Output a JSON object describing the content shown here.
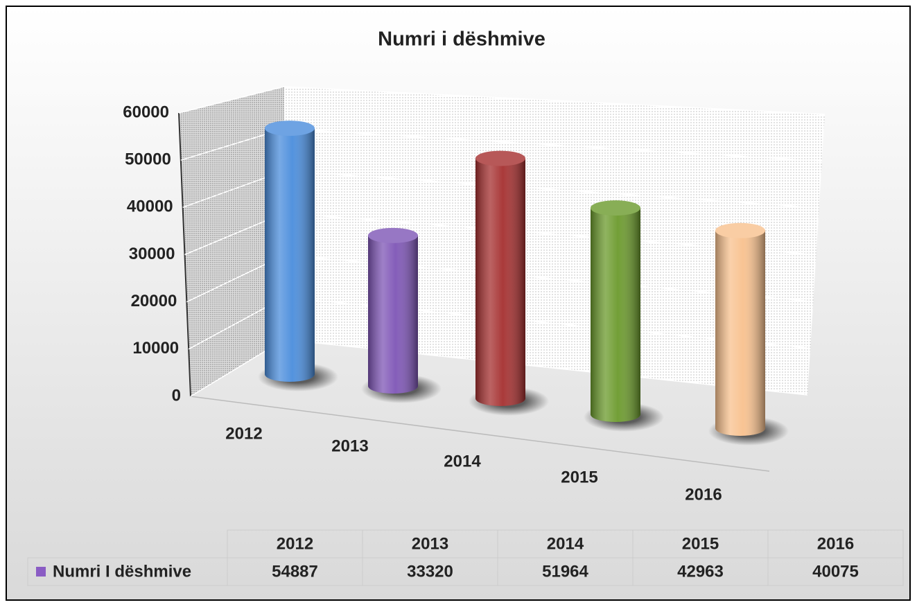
{
  "chart_data": {
    "type": "bar3d",
    "title": "Numri i dëshmive",
    "categories": [
      "2012",
      "2013",
      "2014",
      "2015",
      "2016"
    ],
    "series_name": "Numri I dëshmive",
    "values": [
      54887,
      33320,
      51964,
      42963,
      40075
    ],
    "colors": [
      "#4a8ddc",
      "#7e55b6",
      "#a52f2f",
      "#6b9a2c",
      "#f8c18e"
    ],
    "legend_color": "#8a5cc4",
    "ylim": [
      0,
      60000
    ],
    "yticks": [
      0,
      10000,
      20000,
      30000,
      40000,
      50000,
      60000
    ],
    "grid": true
  }
}
